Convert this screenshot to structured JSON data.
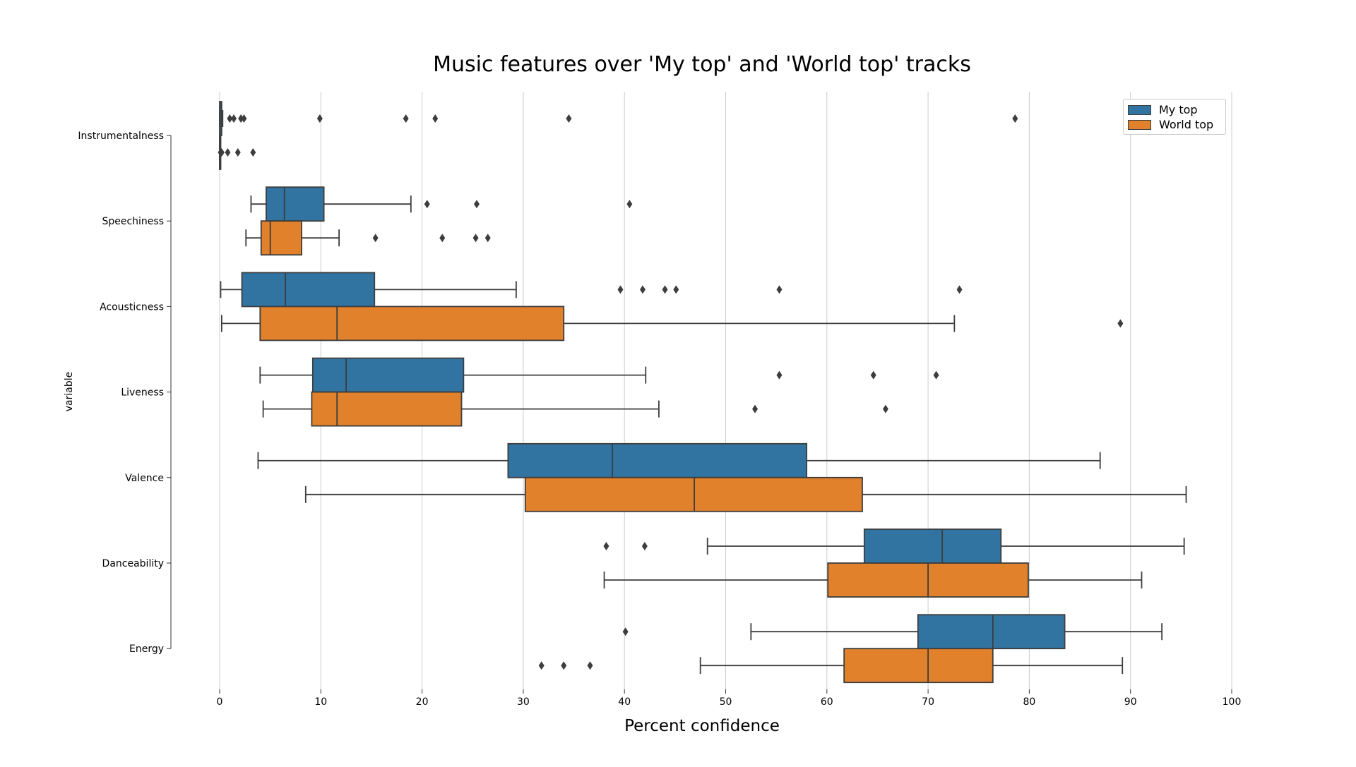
{
  "chart_data": {
    "type": "boxplot",
    "title": "Music features over 'My top' and 'World top' tracks",
    "xlabel": "Percent confidence",
    "ylabel": "variable",
    "xlim": [
      0,
      100
    ],
    "xticks": [
      0,
      10,
      20,
      30,
      40,
      50,
      60,
      70,
      80,
      90,
      100
    ],
    "grid": "vertical",
    "legend_position": "top-right",
    "categories": [
      "Instrumentalness",
      "Speechiness",
      "Acousticness",
      "Liveness",
      "Valence",
      "Danceability",
      "Energy"
    ],
    "series": [
      {
        "name": "My top",
        "color": "#3274a1",
        "boxes": [
          {
            "category": "Instrumentalness",
            "whisker_low": 0.0,
            "q1": 0.0,
            "median": 0.05,
            "q3": 0.2,
            "whisker_high": 0.3,
            "outliers": [
              1.0,
              1.4,
              2.1,
              2.4,
              9.9,
              18.4,
              21.3,
              34.5,
              78.6
            ]
          },
          {
            "category": "Speechiness",
            "whisker_low": 3.1,
            "q1": 4.6,
            "median": 6.4,
            "q3": 10.3,
            "whisker_high": 18.9,
            "outliers": [
              20.5,
              25.4,
              40.5
            ]
          },
          {
            "category": "Acousticness",
            "whisker_low": 0.1,
            "q1": 2.2,
            "median": 6.5,
            "q3": 15.3,
            "whisker_high": 29.3,
            "outliers": [
              39.6,
              41.8,
              44.0,
              45.1,
              55.3,
              73.1
            ]
          },
          {
            "category": "Liveness",
            "whisker_low": 4.0,
            "q1": 9.2,
            "median": 12.5,
            "q3": 24.1,
            "whisker_high": 42.1,
            "outliers": [
              55.3,
              64.6,
              70.8
            ]
          },
          {
            "category": "Valence",
            "whisker_low": 3.8,
            "q1": 28.5,
            "median": 38.8,
            "q3": 58.0,
            "whisker_high": 87.0,
            "outliers": []
          },
          {
            "category": "Danceability",
            "whisker_low": 48.2,
            "q1": 63.7,
            "median": 71.4,
            "q3": 77.2,
            "whisker_high": 95.3,
            "outliers": [
              38.2,
              42.0
            ]
          },
          {
            "category": "Energy",
            "whisker_low": 52.5,
            "q1": 69.0,
            "median": 76.4,
            "q3": 83.5,
            "whisker_high": 93.1,
            "outliers": [
              40.1
            ]
          }
        ]
      },
      {
        "name": "World top",
        "color": "#e1812c",
        "boxes": [
          {
            "category": "Instrumentalness",
            "whisker_low": 0.0,
            "q1": 0.0,
            "median": 0.0,
            "q3": 0.0,
            "whisker_high": 0.0,
            "outliers": [
              0.1,
              0.2,
              0.8,
              1.8,
              3.3
            ]
          },
          {
            "category": "Speechiness",
            "whisker_low": 2.6,
            "q1": 4.1,
            "median": 5.0,
            "q3": 8.1,
            "whisker_high": 11.8,
            "outliers": [
              15.4,
              22.0,
              25.3,
              26.5
            ]
          },
          {
            "category": "Acousticness",
            "whisker_low": 0.2,
            "q1": 4.0,
            "median": 11.6,
            "q3": 34.0,
            "whisker_high": 72.6,
            "outliers": [
              89.0
            ]
          },
          {
            "category": "Liveness",
            "whisker_low": 4.3,
            "q1": 9.1,
            "median": 11.6,
            "q3": 23.9,
            "whisker_high": 43.4,
            "outliers": [
              52.9,
              65.8
            ]
          },
          {
            "category": "Valence",
            "whisker_low": 8.5,
            "q1": 30.2,
            "median": 46.9,
            "q3": 63.5,
            "whisker_high": 95.5,
            "outliers": []
          },
          {
            "category": "Danceability",
            "whisker_low": 38.0,
            "q1": 60.1,
            "median": 70.0,
            "q3": 79.9,
            "whisker_high": 91.1,
            "outliers": []
          },
          {
            "category": "Energy",
            "whisker_low": 47.5,
            "q1": 61.7,
            "median": 70.0,
            "q3": 76.4,
            "whisker_high": 89.2,
            "outliers": [
              31.8,
              34.0,
              36.6
            ]
          }
        ]
      }
    ]
  }
}
